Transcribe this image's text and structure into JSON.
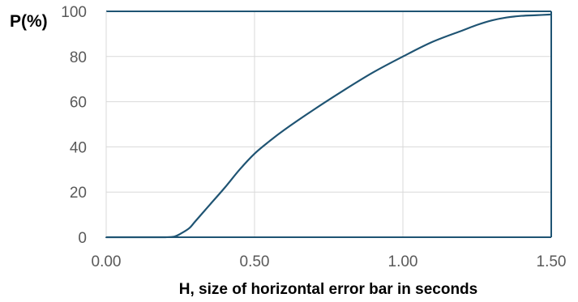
{
  "chart_data": {
    "type": "line",
    "title": "",
    "xlabel": "H, size of horizontal error bar in seconds",
    "ylabel": "P(%)",
    "xlim": [
      0,
      1.5
    ],
    "ylim": [
      0,
      100
    ],
    "x_ticks": [
      "0.00",
      "0.50",
      "1.00",
      "1.50"
    ],
    "y_ticks": [
      "0",
      "20",
      "40",
      "60",
      "80",
      "100"
    ],
    "grid": true,
    "legend": "none",
    "colors": {
      "line": "#1f5473",
      "frame": "#1f5473",
      "grid": "#d9d9d9",
      "tick_text": "#595959",
      "title_text": "#000000"
    },
    "series": [
      {
        "x": [
          0.0,
          0.05,
          0.1,
          0.15,
          0.2,
          0.23,
          0.25,
          0.28,
          0.3,
          0.35,
          0.4,
          0.45,
          0.5,
          0.55,
          0.6,
          0.7,
          0.8,
          0.9,
          1.0,
          1.1,
          1.2,
          1.25,
          1.3,
          1.35,
          1.4,
          1.45,
          1.5
        ],
        "y": [
          0,
          0,
          0,
          0,
          0,
          0.3,
          1.5,
          4,
          7,
          14.5,
          22,
          30,
          37,
          42.5,
          47.5,
          56.5,
          65,
          73,
          80,
          86.5,
          91.5,
          94,
          96,
          97.3,
          98,
          98.3,
          98.6
        ]
      }
    ]
  }
}
